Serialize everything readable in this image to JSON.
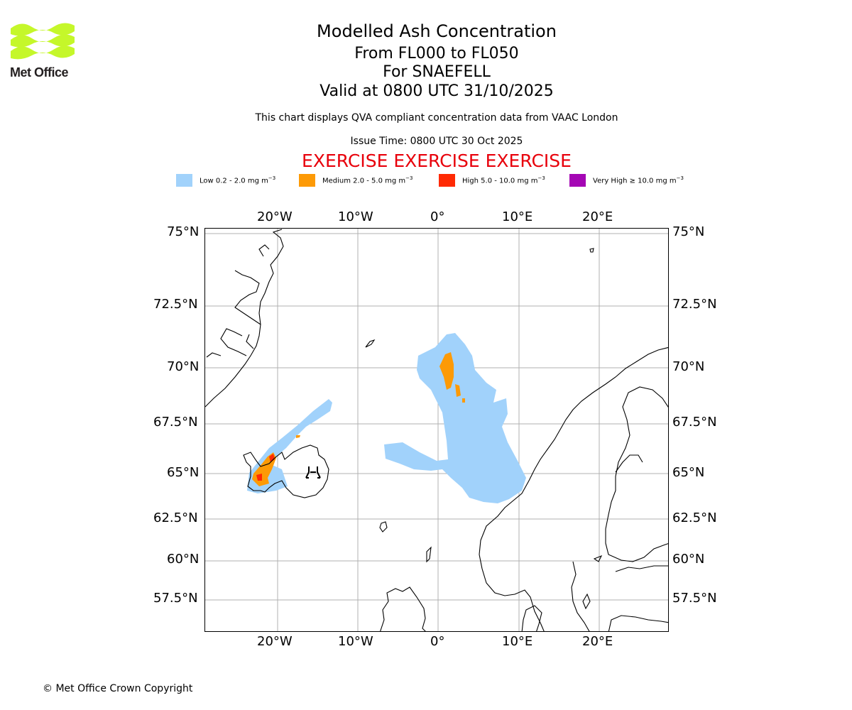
{
  "logo": {
    "text": "Met Office",
    "color": "#c5f72a"
  },
  "header": {
    "title": "Modelled Ash Concentration",
    "levels": "From FL000 to FL050",
    "volcano": "For SNAEFELL",
    "valid": "Valid at 0800 UTC 31/10/2025",
    "compliance": "This chart displays QVA compliant concentration data from VAAC London",
    "issue_time": "Issue Time: 0800 UTC 30 Oct 2025",
    "exercise": "EXERCISE EXERCISE EXERCISE"
  },
  "legend": [
    {
      "label": "Low 0.2 - 2.0 mg m",
      "color": "#a1d2fb"
    },
    {
      "label": "Medium 2.0 - 5.0 mg m",
      "color": "#fd9a06"
    },
    {
      "label": "High 5.0 - 10.0 mg m",
      "color": "#ff2a04"
    },
    {
      "label": "Very High ≥ 10.0 mg m",
      "color": "#a406b4"
    }
  ],
  "legend_unit_exponent": "−3",
  "map": {
    "lon_ticks": [
      "20°W",
      "10°W",
      "0°",
      "10°E",
      "20°E"
    ],
    "lat_ticks": [
      "75°N",
      "72.5°N",
      "70°N",
      "67.5°N",
      "65°N",
      "62.5°N",
      "60°N",
      "57.5°N"
    ],
    "volcano_icon": "volcano-icon"
  },
  "footer": {
    "copyright": "© Met Office Crown Copyright"
  }
}
